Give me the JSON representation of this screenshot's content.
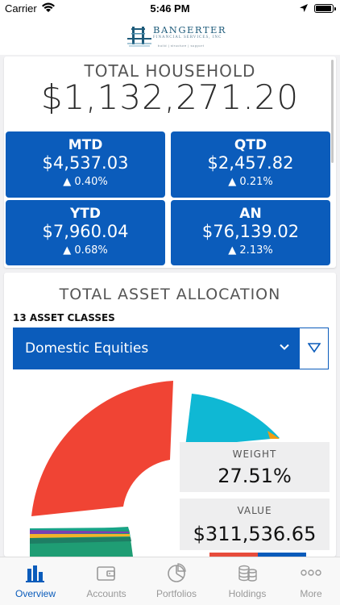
{
  "status": {
    "carrier": "Carrier",
    "time": "5:46 PM"
  },
  "brand": {
    "name": "BANGERTER",
    "subtitle": "FINANCIAL SERVICES, INC",
    "tagline": "build | structure | support"
  },
  "household": {
    "title": "TOTAL HOUSEHOLD",
    "total": "$1,132,271.20",
    "tiles": [
      {
        "label": "MTD",
        "value": "$4,537.03",
        "change": "▲ 0.40%"
      },
      {
        "label": "QTD",
        "value": "$2,457.82",
        "change": "▲ 0.21%"
      },
      {
        "label": "YTD",
        "value": "$7,960.04",
        "change": "▲ 0.68%"
      },
      {
        "label": "AN",
        "value": "$76,139.02",
        "change": "▲ 2.13%"
      }
    ]
  },
  "allocation": {
    "title": "TOTAL ASSET ALLOCATION",
    "classes_label": "13 ASSET CLASSES",
    "selected": "Domestic Equities",
    "weight_label": "WEIGHT",
    "weight_value": "27.51%",
    "value_label": "VALUE",
    "value_value": "$311,536.65"
  },
  "colors": {
    "accent": "#0b5cbb",
    "pie_red": "#f04434",
    "pie_cyan": "#0fb8d4",
    "pie_green": "#1f9d74"
  },
  "tabs": [
    {
      "label": "Overview",
      "icon": "bar-chart-icon",
      "active": true
    },
    {
      "label": "Accounts",
      "icon": "wallet-icon",
      "active": false
    },
    {
      "label": "Portfolios",
      "icon": "pie-chart-icon",
      "active": false
    },
    {
      "label": "Holdings",
      "icon": "coins-icon",
      "active": false
    },
    {
      "label": "More",
      "icon": "more-icon",
      "active": false
    }
  ]
}
